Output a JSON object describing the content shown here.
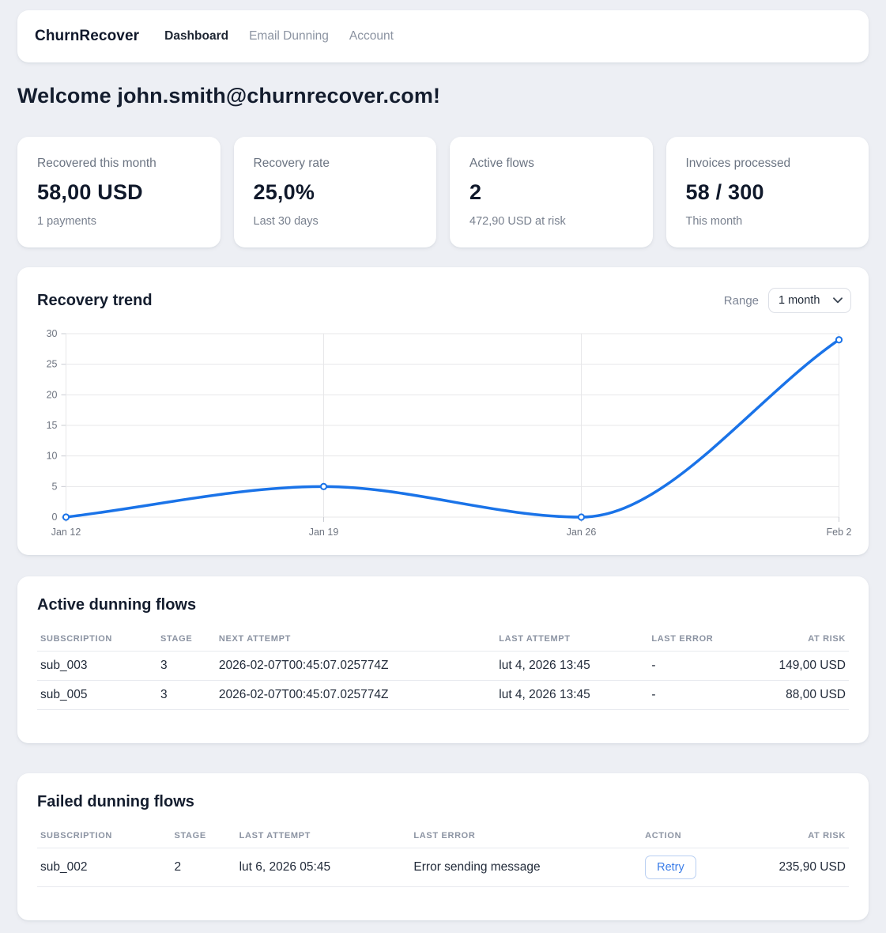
{
  "nav": {
    "brand": "ChurnRecover",
    "items": [
      {
        "label": "Dashboard",
        "active": true
      },
      {
        "label": "Email Dunning",
        "active": false
      },
      {
        "label": "Account",
        "active": false
      }
    ]
  },
  "welcome": {
    "title": "Welcome john.smith@churnrecover.com!"
  },
  "stats": [
    {
      "label": "Recovered this month",
      "value": "58,00 USD",
      "sub": "1 payments"
    },
    {
      "label": "Recovery rate",
      "value": "25,0%",
      "sub": "Last 30 days"
    },
    {
      "label": "Active flows",
      "value": "2",
      "sub": "472,90 USD at risk"
    },
    {
      "label": "Invoices processed",
      "value": "58 / 300",
      "sub": "This month"
    }
  ],
  "chart": {
    "title": "Recovery trend",
    "range_label": "Range",
    "range_value": "1 month"
  },
  "chart_data": {
    "type": "line",
    "title": "Recovery trend",
    "x": [
      "Jan 12",
      "Jan 19",
      "Jan 26",
      "Feb 2"
    ],
    "values": [
      0,
      5,
      0,
      29
    ],
    "ylim": [
      0,
      30
    ],
    "yticks": [
      0,
      5,
      10,
      15,
      20,
      25,
      30
    ],
    "grid": true,
    "legend": false,
    "line_color": "#1a73e8",
    "point_fill": "#ffffff",
    "grid_color": "#e7e7e9",
    "tick_color": "#c9ccd2",
    "label_color": "#6e7480"
  },
  "active_flows": {
    "title": "Active dunning flows",
    "columns": [
      "Subscription",
      "Stage",
      "Next attempt",
      "Last attempt",
      "Last error",
      "At risk"
    ],
    "rows": [
      {
        "subscription": "sub_003",
        "stage": "3",
        "next_attempt": "2026-02-07T00:45:07.025774Z",
        "last_attempt": "lut 4, 2026 13:45",
        "last_error": "-",
        "at_risk": "149,00 USD"
      },
      {
        "subscription": "sub_005",
        "stage": "3",
        "next_attempt": "2026-02-07T00:45:07.025774Z",
        "last_attempt": "lut 4, 2026 13:45",
        "last_error": "-",
        "at_risk": "88,00 USD"
      }
    ]
  },
  "failed_flows": {
    "title": "Failed dunning flows",
    "columns": [
      "Subscription",
      "Stage",
      "Last attempt",
      "Last error",
      "Action",
      "At risk"
    ],
    "rows": [
      {
        "subscription": "sub_002",
        "stage": "2",
        "last_attempt": "lut 6, 2026 05:45",
        "last_error": "Error sending message",
        "action": "Retry",
        "at_risk": "235,90 USD"
      }
    ]
  },
  "colors": {
    "accent": "#1a73e8",
    "background": "#edeff4"
  }
}
